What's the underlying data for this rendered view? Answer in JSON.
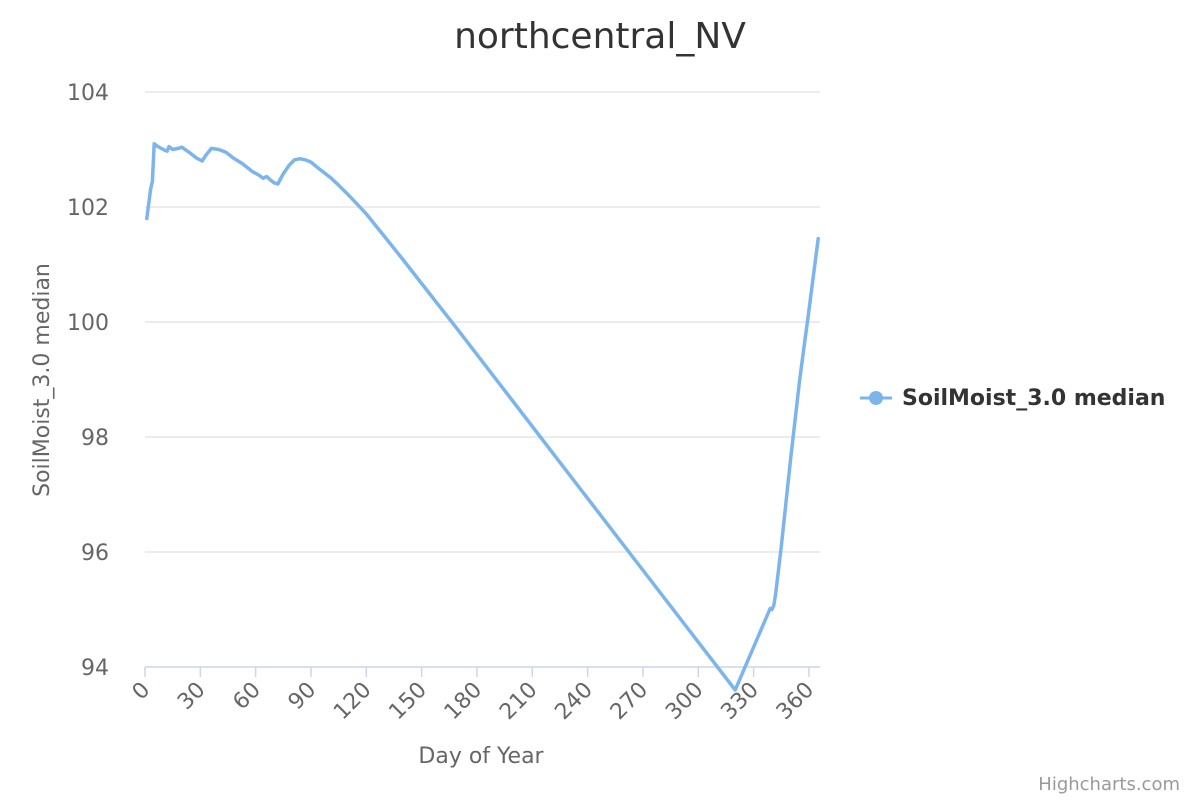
{
  "chart_data": {
    "type": "line",
    "title": "northcentral_NV",
    "xlabel": "Day of Year",
    "ylabel": "SoilMoist_3.0 median",
    "xlim": [
      0,
      366
    ],
    "ylim": [
      94,
      104
    ],
    "x_ticks": [
      "0",
      "30",
      "60",
      "90",
      "120",
      "150",
      "180",
      "210",
      "240",
      "270",
      "300",
      "330",
      "360"
    ],
    "y_ticks": [
      "94",
      "96",
      "98",
      "100",
      "102",
      "104"
    ],
    "grid": true,
    "legend": "right",
    "series": [
      {
        "name": "SoilMoist_3.0 median",
        "color": "#7cb5ec",
        "x": [
          1,
          3,
          4,
          5,
          7,
          10,
          12,
          13,
          15,
          18,
          20,
          24,
          28,
          31,
          33,
          36,
          40,
          44,
          48,
          53,
          58,
          62,
          64,
          66,
          68,
          70,
          72,
          75,
          78,
          81,
          84,
          87,
          90,
          93,
          97,
          101,
          105,
          110,
          115,
          120,
          125,
          130,
          140,
          150,
          170,
          200,
          230,
          260,
          290,
          320,
          339,
          340,
          341,
          342,
          345,
          350,
          355,
          360,
          365
        ],
        "values": [
          101.8,
          102.3,
          102.45,
          103.1,
          103.05,
          103.0,
          102.97,
          103.05,
          103.0,
          103.02,
          103.04,
          102.95,
          102.85,
          102.8,
          102.9,
          103.02,
          103.0,
          102.95,
          102.85,
          102.75,
          102.62,
          102.55,
          102.5,
          102.53,
          102.47,
          102.42,
          102.4,
          102.58,
          102.72,
          102.82,
          102.84,
          102.82,
          102.78,
          102.7,
          102.6,
          102.5,
          102.38,
          102.22,
          102.05,
          101.88,
          101.68,
          101.48,
          101.08,
          100.67,
          99.85,
          98.6,
          97.35,
          96.1,
          94.85,
          93.6,
          95.02,
          95.0,
          95.08,
          95.28,
          96.1,
          97.6,
          99.0,
          100.2,
          101.45
        ]
      }
    ]
  },
  "credits": "Highcharts.com"
}
